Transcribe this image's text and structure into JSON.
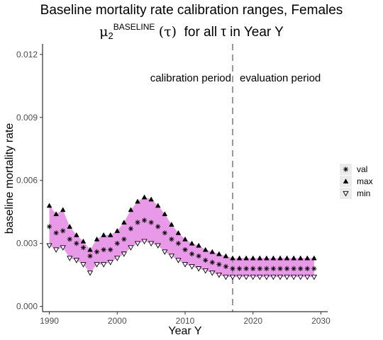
{
  "header": {
    "title": "Baseline mortality rate calibration ranges, Females",
    "subtitle_symbol": "μ",
    "subtitle_sub": "2",
    "subtitle_sup": "BASELINE",
    "subtitle_tau": "(τ)",
    "subtitle_rest": "for all τ in Year Y"
  },
  "chart_data": {
    "type": "scatter",
    "xlabel": "Year Y",
    "ylabel": "baseline mortality rate",
    "xlim": [
      1989,
      2031
    ],
    "ylim": [
      -0.00025,
      0.0125
    ],
    "xticks": [
      1990,
      2000,
      2010,
      2020,
      2030
    ],
    "yticks": [
      0.0,
      0.003,
      0.006,
      0.009,
      0.012
    ],
    "ytick_labels": [
      "0.000",
      "0.003",
      "0.006",
      "0.009",
      "0.012"
    ],
    "grid": false,
    "legend_position": "right",
    "band_color": "#e89ae8",
    "vline": {
      "x": 2017,
      "style": "dashed",
      "color": "#999999"
    },
    "annotations": {
      "left": "calibration period",
      "right": "evaluation period"
    },
    "x": [
      1990,
      1991,
      1992,
      1993,
      1994,
      1995,
      1996,
      1997,
      1998,
      1999,
      2000,
      2001,
      2002,
      2003,
      2004,
      2005,
      2006,
      2007,
      2008,
      2009,
      2010,
      2011,
      2012,
      2013,
      2014,
      2015,
      2016,
      2017,
      2018,
      2019,
      2020,
      2021,
      2022,
      2023,
      2024,
      2025,
      2026,
      2027,
      2028,
      2029
    ],
    "series": [
      {
        "name": "val",
        "marker": "asterisk",
        "values": [
          0.0038,
          0.0035,
          0.0036,
          0.0032,
          0.003,
          0.0028,
          0.0024,
          0.0026,
          0.0027,
          0.0027,
          0.003,
          0.0032,
          0.0037,
          0.004,
          0.0041,
          0.004,
          0.0038,
          0.0035,
          0.0032,
          0.003,
          0.0027,
          0.0025,
          0.0024,
          0.0022,
          0.0021,
          0.002,
          0.0019,
          0.0018,
          0.0018,
          0.0018,
          0.0018,
          0.0018,
          0.0018,
          0.0018,
          0.0018,
          0.0018,
          0.0018,
          0.0018,
          0.0018,
          0.0018
        ]
      },
      {
        "name": "max",
        "marker": "triangle-filled",
        "values": [
          0.0048,
          0.0044,
          0.0046,
          0.0038,
          0.0034,
          0.0031,
          0.0027,
          0.0032,
          0.0034,
          0.0034,
          0.0036,
          0.004,
          0.0046,
          0.005,
          0.0052,
          0.0051,
          0.0048,
          0.0044,
          0.0039,
          0.0035,
          0.0032,
          0.003,
          0.0029,
          0.0027,
          0.0026,
          0.0025,
          0.0024,
          0.0023,
          0.0023,
          0.0023,
          0.0023,
          0.0023,
          0.0023,
          0.0023,
          0.0023,
          0.0023,
          0.0023,
          0.0023,
          0.0023,
          0.0023
        ]
      },
      {
        "name": "min",
        "marker": "triangle-open",
        "values": [
          0.0029,
          0.0027,
          0.0028,
          0.0023,
          0.0022,
          0.002,
          0.0016,
          0.002,
          0.002,
          0.0021,
          0.0023,
          0.0025,
          0.0028,
          0.003,
          0.0031,
          0.003,
          0.0029,
          0.0026,
          0.0024,
          0.0022,
          0.002,
          0.0019,
          0.0018,
          0.0017,
          0.0016,
          0.0015,
          0.0014,
          0.0014,
          0.0014,
          0.0014,
          0.0014,
          0.0014,
          0.0014,
          0.0014,
          0.0014,
          0.0014,
          0.0014,
          0.0014,
          0.0014,
          0.0014
        ]
      }
    ]
  }
}
